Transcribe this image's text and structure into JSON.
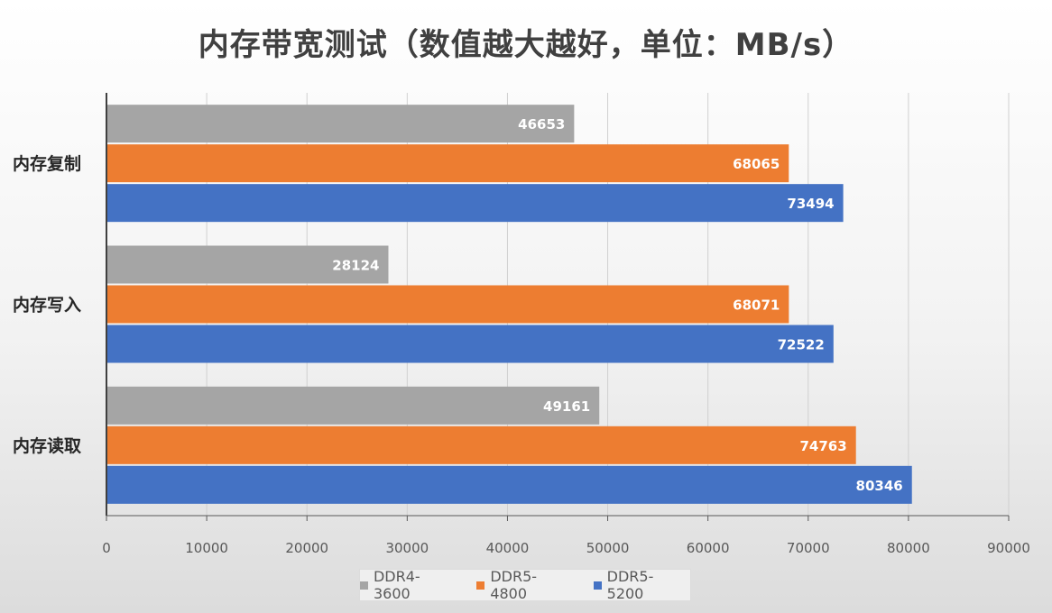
{
  "chart_data": {
    "type": "bar",
    "orientation": "horizontal",
    "title": "内存带宽测试（数值越大越好，单位：MB/s）",
    "categories": [
      "内存复制",
      "内存写入",
      "内存读取"
    ],
    "series": [
      {
        "name": "DDR4-3600",
        "color": "#a5a5a5",
        "values": [
          46653,
          28124,
          49161
        ]
      },
      {
        "name": "DDR5-4800",
        "color": "#ed7d31",
        "values": [
          68065,
          68071,
          74763
        ]
      },
      {
        "name": "DDR5-5200",
        "color": "#4472c4",
        "values": [
          73494,
          72522,
          80346
        ]
      }
    ],
    "xlim": [
      0,
      90000
    ],
    "xticks": [
      "0",
      "10000",
      "20000",
      "30000",
      "40000",
      "50000",
      "60000",
      "70000",
      "80000",
      "90000"
    ],
    "grid": true,
    "legend": "bottom",
    "data_labels": true
  }
}
